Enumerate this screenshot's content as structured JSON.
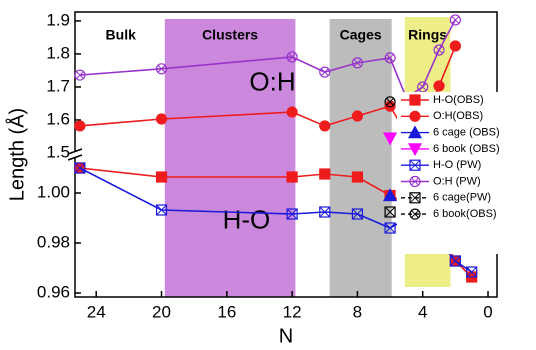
{
  "chart_data": {
    "type": "line",
    "x_label": "N",
    "y_label": "Length (Å)",
    "xlim": [
      25.3,
      -0.55
    ],
    "xticks": [
      24,
      20,
      16,
      12,
      8,
      4,
      0
    ],
    "ylim": [
      0.9584,
      1.0152
    ],
    "yticks": [
      0.96,
      0.98,
      {
        "value": 1,
        "label": "1.00"
      }
    ],
    "y2lim": [
      1.494,
      1.927
    ],
    "y2ticks": [
      1.5,
      1.6,
      1.7,
      1.8,
      1.9
    ],
    "regions": [
      {
        "label": "Bulk",
        "x": [
          24,
          21
        ],
        "color": "none"
      },
      {
        "label": "Clusters",
        "x": [
          19.8,
          11.8
        ],
        "color": "#cc88dd"
      },
      {
        "label": "Cages",
        "x": [
          9.7,
          5.9
        ],
        "color": "#bcbcbc"
      },
      {
        "label": "Rings",
        "x": [
          5.1,
          2.3
        ],
        "color": "#eeee88"
      }
    ],
    "annotations": [
      "O:H",
      "H-O"
    ],
    "series": [
      {
        "name": "H-O(OBS)",
        "color": "#ee1c1c",
        "marker": "square",
        "fill": true,
        "line": "solid",
        "x": [
          25,
          20,
          12,
          10,
          8,
          6,
          5,
          4,
          3,
          2,
          1
        ],
        "values": [
          1.01,
          1.0064,
          1.0064,
          1.0076,
          1.0064,
          0.999,
          0.996,
          0.9952,
          0.986,
          0.9728,
          0.9664
        ]
      },
      {
        "name": "O:H(OBS)",
        "color": "#ee1c1c",
        "marker": "circle",
        "fill": true,
        "line": "solid",
        "axis": "y2",
        "x": [
          25,
          20,
          12,
          10,
          8,
          6,
          5,
          4,
          3,
          2
        ],
        "values": [
          1.582,
          1.603,
          1.624,
          1.582,
          1.612,
          1.642,
          1.558,
          1.573,
          1.703,
          1.824
        ]
      },
      {
        "name": "6 cage (OBS)",
        "color": "#1a1adc",
        "marker": "triangle",
        "fill": true,
        "line": "none",
        "x": [
          6
        ],
        "values": [
          0.999
        ]
      },
      {
        "name": "6 book (OBS)",
        "color": "#ff00ff",
        "marker": "triangle-down",
        "fill": true,
        "line": "none",
        "axis": "y2",
        "x": [
          6
        ],
        "values": [
          1.545
        ]
      },
      {
        "name": "H-O (PW)",
        "color": "#1a1adc",
        "marker": "crossed-square",
        "fill": false,
        "line": "solid",
        "x": [
          25,
          20,
          12,
          10,
          8,
          6,
          5,
          4,
          3,
          2,
          1
        ],
        "values": [
          1.01,
          0.9932,
          0.9916,
          0.9924,
          0.9916,
          0.986,
          0.9896,
          0.9856,
          0.9808,
          0.9728,
          0.9684
        ]
      },
      {
        "name": "O:H (PW)",
        "color": "#9933cc",
        "marker": "crossed-circle",
        "fill": false,
        "line": "solid",
        "axis": "y2",
        "x": [
          25,
          20,
          12,
          10,
          8,
          6,
          5,
          4,
          3,
          2
        ],
        "values": [
          1.736,
          1.755,
          1.791,
          1.745,
          1.773,
          1.788,
          1.667,
          1.7,
          1.812,
          1.903
        ]
      },
      {
        "name": "6 cage(PW)",
        "color": "#000000",
        "marker": "crossed-square",
        "fill": false,
        "line": "dashed",
        "x": [
          6
        ],
        "values": [
          0.9924
        ]
      },
      {
        "name": "6 book(OBS)",
        "color": "#000000",
        "marker": "crossed-circle",
        "fill": false,
        "line": "dashed",
        "axis": "y2",
        "x": [
          6
        ],
        "values": [
          1.655
        ]
      }
    ]
  }
}
